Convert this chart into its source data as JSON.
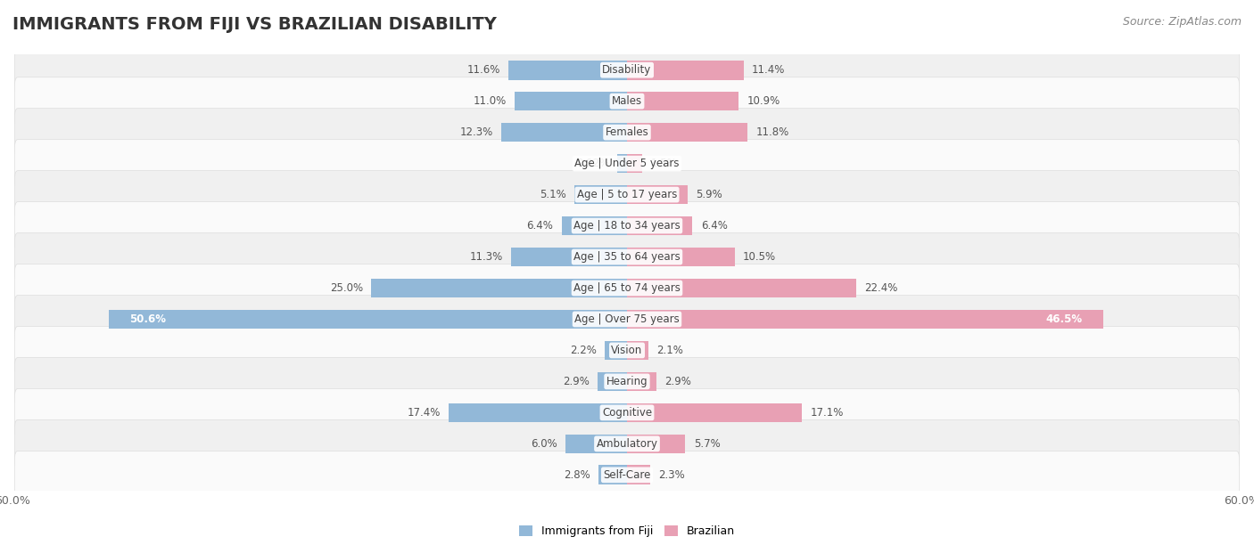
{
  "title": "IMMIGRANTS FROM FIJI VS BRAZILIAN DISABILITY",
  "source": "Source: ZipAtlas.com",
  "categories": [
    "Disability",
    "Males",
    "Females",
    "Age | Under 5 years",
    "Age | 5 to 17 years",
    "Age | 18 to 34 years",
    "Age | 35 to 64 years",
    "Age | 65 to 74 years",
    "Age | Over 75 years",
    "Vision",
    "Hearing",
    "Cognitive",
    "Ambulatory",
    "Self-Care"
  ],
  "fiji_values": [
    11.6,
    11.0,
    12.3,
    0.92,
    5.1,
    6.4,
    11.3,
    25.0,
    50.6,
    2.2,
    2.9,
    17.4,
    6.0,
    2.8
  ],
  "brazil_values": [
    11.4,
    10.9,
    11.8,
    1.5,
    5.9,
    6.4,
    10.5,
    22.4,
    46.5,
    2.1,
    2.9,
    17.1,
    5.7,
    2.3
  ],
  "fiji_color": "#92b8d8",
  "brazil_color": "#e8a0b4",
  "axis_max": 60.0,
  "row_bg_even": "#f0f0f0",
  "row_bg_odd": "#fafafa",
  "bar_height": 0.62,
  "legend_fiji": "Immigrants from Fiji",
  "legend_brazil": "Brazilian",
  "title_fontsize": 14,
  "label_fontsize": 8.5,
  "cat_fontsize": 8.5,
  "tick_fontsize": 9,
  "source_fontsize": 9
}
